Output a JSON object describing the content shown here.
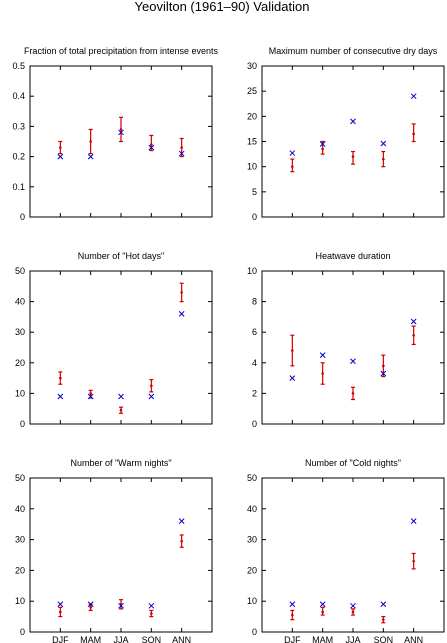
{
  "figure": {
    "title": "Yeovilton (1961–90) Validation"
  },
  "colors": {
    "model": "#cc0000",
    "observed": "#0000cc"
  },
  "chart_data": [
    {
      "type": "scatter",
      "title": "Fraction of total precipitation from intense events",
      "categories": [
        "DJF",
        "MAM",
        "JJA",
        "SON",
        "ANN"
      ],
      "ylim": [
        0,
        0.5
      ],
      "yticks": [
        "0",
        "0.1",
        "0.2",
        "0.3",
        "0.4",
        "0.5"
      ],
      "ytick_values": [
        0,
        0.1,
        0.2,
        0.3,
        0.4,
        0.5
      ],
      "show_xticklabels": false,
      "model": {
        "mean": [
          0.23,
          0.25,
          0.29,
          0.24,
          0.23
        ],
        "low": [
          0.21,
          0.21,
          0.25,
          0.22,
          0.2
        ],
        "high": [
          0.25,
          0.29,
          0.33,
          0.27,
          0.26
        ]
      },
      "observed": [
        0.2,
        0.2,
        0.28,
        0.23,
        0.21
      ]
    },
    {
      "type": "scatter",
      "title": "Maximum number of consecutive dry days",
      "categories": [
        "DJF",
        "MAM",
        "JJA",
        "SON",
        "ANN"
      ],
      "ylim": [
        0,
        30
      ],
      "yticks": [
        "0",
        "5",
        "10",
        "15",
        "20",
        "25",
        "30"
      ],
      "ytick_values": [
        0,
        5,
        10,
        15,
        20,
        25,
        30
      ],
      "show_xticklabels": false,
      "model": {
        "mean": [
          10,
          13.5,
          12,
          11.5,
          16.5
        ],
        "low": [
          9,
          12.5,
          10.5,
          10,
          15
        ],
        "high": [
          11.5,
          15,
          13,
          13,
          18.5
        ]
      },
      "observed": [
        12.7,
        14.5,
        19,
        14.6,
        24
      ]
    },
    {
      "type": "scatter",
      "title": "Number of \"Hot days\"",
      "categories": [
        "DJF",
        "MAM",
        "JJA",
        "SON",
        "ANN"
      ],
      "ylim": [
        0,
        50
      ],
      "yticks": [
        "0",
        "10",
        "20",
        "30",
        "40",
        "50"
      ],
      "ytick_values": [
        0,
        10,
        20,
        30,
        40,
        50
      ],
      "show_xticklabels": false,
      "model": {
        "mean": [
          15,
          10,
          4.5,
          12.5,
          43
        ],
        "low": [
          13,
          8.5,
          3.5,
          10.5,
          40
        ],
        "high": [
          17,
          11,
          5.5,
          14.5,
          46
        ]
      },
      "observed": [
        9,
        9,
        9,
        9,
        36
      ]
    },
    {
      "type": "scatter",
      "title": "Heatwave duration",
      "categories": [
        "DJF",
        "MAM",
        "JJA",
        "SON",
        "ANN"
      ],
      "ylim": [
        0,
        10
      ],
      "yticks": [
        "0",
        "2",
        "4",
        "6",
        "8",
        "10"
      ],
      "ytick_values": [
        0,
        2,
        4,
        6,
        8,
        10
      ],
      "show_xticklabels": false,
      "model": {
        "mean": [
          4.8,
          3.3,
          2.0,
          3.8,
          5.8
        ],
        "low": [
          3.8,
          2.6,
          1.6,
          3.1,
          5.2
        ],
        "high": [
          5.8,
          4.0,
          2.4,
          4.5,
          6.4
        ]
      },
      "observed": [
        3.0,
        4.5,
        4.1,
        3.3,
        6.7
      ]
    },
    {
      "type": "scatter",
      "title": "Number of \"Warm nights\"",
      "categories": [
        "DJF",
        "MAM",
        "JJA",
        "SON",
        "ANN"
      ],
      "ylim": [
        0,
        50
      ],
      "yticks": [
        "0",
        "10",
        "20",
        "30",
        "40",
        "50"
      ],
      "ytick_values": [
        0,
        10,
        20,
        30,
        40,
        50
      ],
      "show_xticklabels": true,
      "model": {
        "mean": [
          6.5,
          8,
          9,
          6,
          29.5
        ],
        "low": [
          5,
          7,
          7.5,
          5,
          27.5
        ],
        "high": [
          8,
          9,
          10.5,
          7,
          31.5
        ]
      },
      "observed": [
        9,
        9,
        8.5,
        8.5,
        36
      ]
    },
    {
      "type": "scatter",
      "title": "Number of \"Cold nights\"",
      "categories": [
        "DJF",
        "MAM",
        "JJA",
        "SON",
        "ANN"
      ],
      "ylim": [
        0,
        50
      ],
      "yticks": [
        "0",
        "10",
        "20",
        "30",
        "40",
        "50"
      ],
      "ytick_values": [
        0,
        10,
        20,
        30,
        40,
        50
      ],
      "show_xticklabels": true,
      "model": {
        "mean": [
          5.5,
          6.5,
          6.5,
          4,
          23
        ],
        "low": [
          4,
          5.5,
          5.5,
          3,
          20.5
        ],
        "high": [
          7,
          8,
          7.5,
          5,
          25.5
        ]
      },
      "observed": [
        9,
        9,
        8.5,
        9,
        36
      ]
    }
  ]
}
